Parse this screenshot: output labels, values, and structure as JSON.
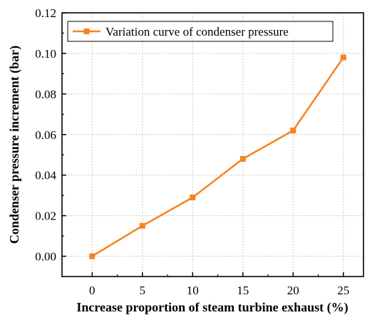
{
  "chart_data": {
    "type": "line",
    "x": [
      0,
      5,
      10,
      15,
      20,
      25
    ],
    "series": [
      {
        "name": "Variation curve of condenser pressure",
        "values": [
          0.0,
          0.015,
          0.029,
          0.048,
          0.062,
          0.098
        ]
      }
    ],
    "xlabel": "Increase proportion of steam turbine exhaust (%)",
    "ylabel": "Condenser pressure increment (bar)",
    "xticks": [
      "0",
      "5",
      "10",
      "15",
      "20",
      "25"
    ],
    "yticks": [
      "0.00",
      "0.02",
      "0.04",
      "0.06",
      "0.08",
      "0.10",
      "0.12"
    ],
    "xlim": [
      -3,
      27
    ],
    "ylim": [
      -0.01,
      0.12
    ],
    "grid": true,
    "legend_position": "top-left",
    "color": "#f5841f",
    "marker": "square"
  }
}
